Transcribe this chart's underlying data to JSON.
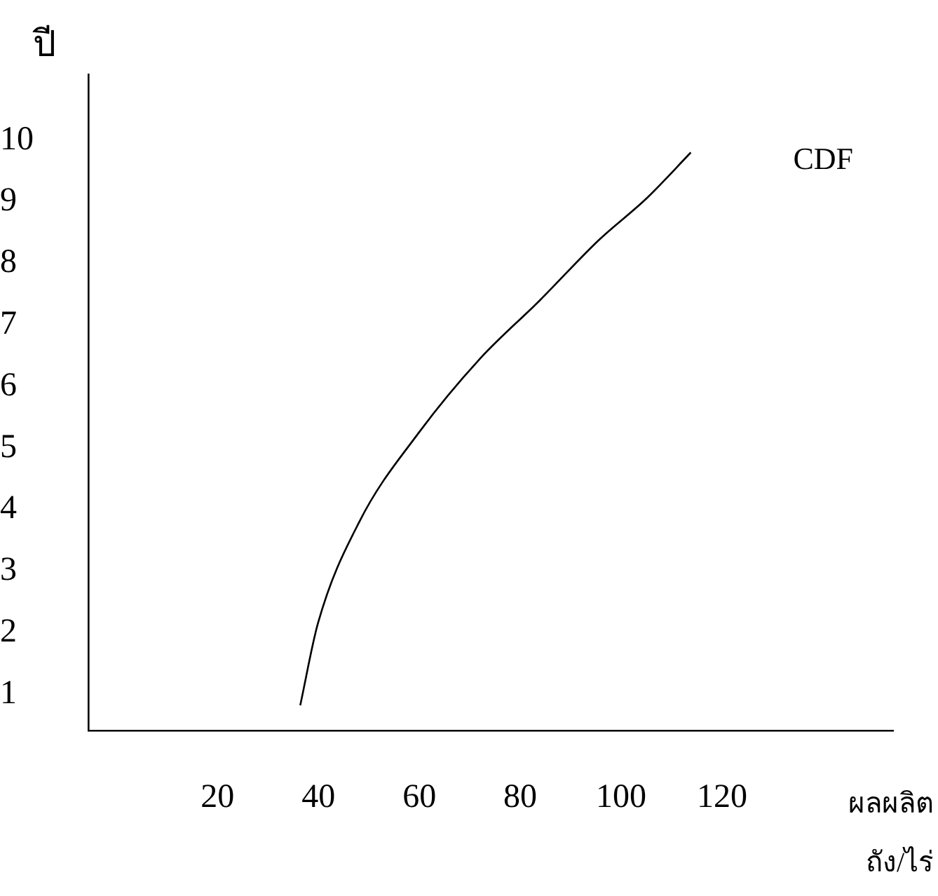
{
  "chart_data": {
    "type": "line",
    "xlabel": "ผลผลิต\nถัง/ไร่",
    "ylabel": "ปี",
    "series": [
      {
        "name": "CDF",
        "color": "#000000",
        "x": [
          36.4,
          39.9,
          48.1,
          60,
          71.9,
          83.9,
          95.6,
          105.1,
          113.8
        ],
        "values": [
          0.82,
          2.15,
          3.8,
          5.26,
          6.44,
          7.4,
          8.38,
          9.06,
          9.8
        ]
      }
    ],
    "xlim": [
      -5.6,
      153.9
    ],
    "xticks": [
      20,
      40,
      60,
      80,
      100,
      120
    ],
    "ylim": [
      0.41,
      11.07
    ],
    "yticks": [
      1,
      2,
      3,
      4,
      5,
      6,
      7,
      8,
      9,
      10
    ],
    "grid": false,
    "legend": false,
    "marker": "none",
    "line_style": "solid"
  }
}
